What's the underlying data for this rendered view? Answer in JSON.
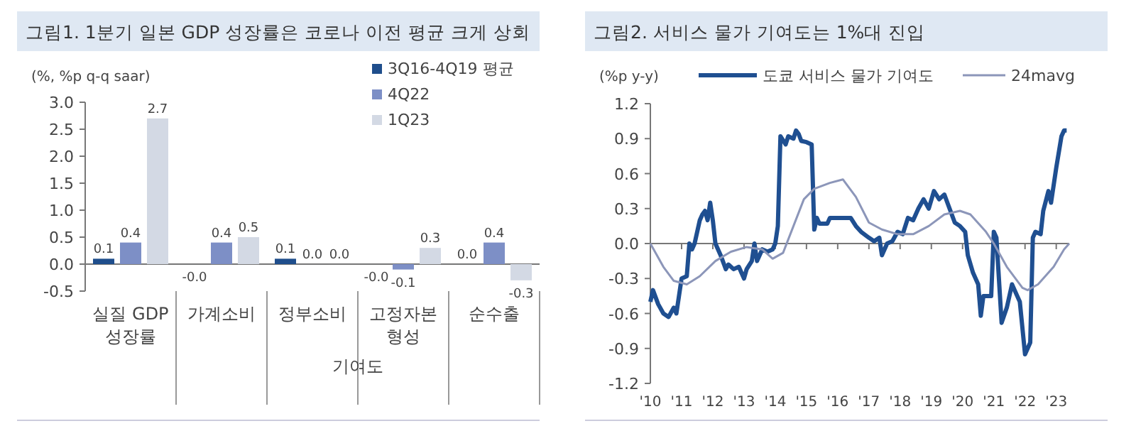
{
  "chart_data": [
    {
      "type": "bar",
      "title": "그림1. 1분기 일본 GDP 성장률은 코로나 이전 평균 크게 상회",
      "ylabel": "(%, %p q-q saar)",
      "categories": [
        "실질 GDP 성장률",
        "가계소비",
        "정부소비",
        "고정자본 형성",
        "순수출"
      ],
      "series": [
        {
          "name": "3Q16-4Q19 평균",
          "color": "#1f4e8c",
          "values": [
            0.1,
            0,
            0.1,
            0,
            0
          ],
          "value_labels": [
            "0.1",
            "-0.0",
            "0.1",
            "-0.0",
            "0.0"
          ]
        },
        {
          "name": "4Q22",
          "color": "#7d8fc6",
          "values": [
            0.4,
            0.4,
            0,
            -0.1,
            0.4
          ],
          "value_labels": [
            "0.4",
            "0.4",
            "0.0",
            "-0.1",
            "0.4"
          ]
        },
        {
          "name": "1Q23",
          "color": "#d3d9e4",
          "values": [
            2.7,
            0.5,
            0,
            0.3,
            -0.3
          ],
          "value_labels": [
            "2.7",
            "0.5",
            "0.0",
            "0.3",
            "-0.3"
          ]
        }
      ],
      "ylim": [
        -0.5,
        3.0
      ],
      "yticks": [
        {
          "value": -0.5,
          "label": "-0.5"
        },
        {
          "value": 0,
          "label": "0.0"
        },
        {
          "value": 0.5,
          "label": "0.5"
        },
        {
          "value": 1,
          "label": "1.0"
        },
        {
          "value": 1.5,
          "label": "1.5"
        },
        {
          "value": 2,
          "label": "2.0"
        },
        {
          "value": 2.5,
          "label": "2.5"
        },
        {
          "value": 3,
          "label": "3.0"
        }
      ],
      "annotations": [
        "기여도"
      ],
      "legend": "top right",
      "grid": false
    },
    {
      "type": "line",
      "title": "그림2. 서비스 물가 기여도는 1%대 진입",
      "ylabel": "(%p y-y)",
      "series": [
        {
          "name": "도쿄 서비스 물가 기여도",
          "color": "#1f4f91",
          "x": [
            "2010-01",
            "2010-02",
            "2010-04",
            "2010-06",
            "2010-08",
            "2010-10",
            "2010-11",
            "2010-12",
            "2011-01",
            "2011-03",
            "2011-04",
            "2011-05",
            "2011-06",
            "2011-08",
            "2011-09",
            "2011-10",
            "2011-11",
            "2011-12",
            "2012-01",
            "2012-02",
            "2012-03",
            "2012-04",
            "2012-06",
            "2012-07",
            "2012-09",
            "2012-11",
            "2013-01",
            "2013-02",
            "2013-04",
            "2013-05",
            "2013-06",
            "2013-08",
            "2013-10",
            "2013-12",
            "2014-01",
            "2014-02",
            "2014-03",
            "2014-05",
            "2014-06",
            "2014-08",
            "2014-09",
            "2014-10",
            "2014-11",
            "2015-01",
            "2015-03",
            "2015-04",
            "2015-05",
            "2015-06",
            "2015-09",
            "2015-10",
            "2016-06",
            "2016-08",
            "2016-10",
            "2017-01",
            "2017-03",
            "2017-05",
            "2017-06",
            "2017-08",
            "2017-10",
            "2017-12",
            "2018-02",
            "2018-04",
            "2018-06",
            "2018-08",
            "2018-10",
            "2018-12",
            "2019-02",
            "2019-04",
            "2019-06",
            "2019-08",
            "2019-10",
            "2019-12",
            "2020-02",
            "2020-03",
            "2020-05",
            "2020-07",
            "2020-08",
            "2020-09",
            "2020-12",
            "2021-01",
            "2021-02",
            "2021-04",
            "2021-06",
            "2021-08",
            "2021-10",
            "2021-11",
            "2022-01",
            "2022-03",
            "2022-04",
            "2022-05",
            "2022-07",
            "2022-08",
            "2022-10",
            "2022-11",
            "2023-01",
            "2023-03",
            "2023-04",
            "2023-05"
          ],
          "values": [
            -0.5,
            -0.4,
            -0.52,
            -0.6,
            -0.63,
            -0.55,
            -0.6,
            -0.45,
            -0.3,
            -0.28,
            0.0,
            -0.05,
            0.0,
            0.2,
            0.25,
            0.28,
            0.2,
            0.35,
            0.2,
            0.0,
            -0.05,
            -0.1,
            -0.22,
            -0.18,
            -0.22,
            -0.2,
            -0.3,
            -0.22,
            -0.15,
            0.0,
            -0.15,
            -0.05,
            -0.07,
            -0.05,
            0.0,
            0.15,
            0.92,
            0.85,
            0.92,
            0.9,
            0.97,
            0.94,
            0.88,
            0.87,
            0.85,
            0.12,
            0.22,
            0.17,
            0.17,
            0.22,
            0.22,
            0.15,
            0.1,
            0.05,
            0.02,
            0.05,
            -0.1,
            0.0,
            0.02,
            0.1,
            0.08,
            0.22,
            0.2,
            0.3,
            0.38,
            0.3,
            0.45,
            0.38,
            0.42,
            0.3,
            0.18,
            0.15,
            0.1,
            -0.1,
            -0.25,
            -0.35,
            -0.62,
            -0.45,
            -0.45,
            0.1,
            0.05,
            -0.68,
            -0.55,
            -0.35,
            -0.45,
            -0.5,
            -0.95,
            -0.85,
            0.05,
            0.1,
            0.08,
            0.28,
            0.45,
            0.35,
            0.65,
            0.92,
            0.97,
            0.97
          ]
        },
        {
          "name": "24mavg",
          "color": "#8c96b9",
          "x": [
            "2010-01",
            "2010-06",
            "2010-10",
            "2011-03",
            "2011-08",
            "2012-02",
            "2012-08",
            "2013-02",
            "2013-08",
            "2013-12",
            "2014-04",
            "2014-08",
            "2014-12",
            "2015-04",
            "2015-10",
            "2016-03",
            "2016-08",
            "2017-01",
            "2017-06",
            "2017-12",
            "2018-06",
            "2018-12",
            "2019-06",
            "2019-12",
            "2020-04",
            "2020-10",
            "2021-01",
            "2021-06",
            "2021-12",
            "2022-02",
            "2022-06",
            "2022-12",
            "2023-04",
            "2023-06"
          ],
          "values": [
            0.0,
            -0.2,
            -0.32,
            -0.35,
            -0.28,
            -0.15,
            -0.07,
            -0.03,
            -0.05,
            -0.13,
            -0.08,
            0.15,
            0.38,
            0.47,
            0.52,
            0.55,
            0.4,
            0.18,
            0.12,
            0.08,
            0.08,
            0.15,
            0.25,
            0.28,
            0.25,
            0.1,
            0.0,
            -0.2,
            -0.38,
            -0.4,
            -0.35,
            -0.2,
            -0.05,
            0.0
          ]
        }
      ],
      "xlim": [
        "2010-01",
        "2023-06"
      ],
      "xticks": [
        {
          "value": "2010-01",
          "label": "'10"
        },
        {
          "value": "2011-01",
          "label": "'11"
        },
        {
          "value": "2012-01",
          "label": "'12"
        },
        {
          "value": "2013-01",
          "label": "'13"
        },
        {
          "value": "2014-01",
          "label": "'14"
        },
        {
          "value": "2015-01",
          "label": "'15"
        },
        {
          "value": "2016-01",
          "label": "'16"
        },
        {
          "value": "2017-01",
          "label": "'17"
        },
        {
          "value": "2018-01",
          "label": "'18"
        },
        {
          "value": "2019-01",
          "label": "'19"
        },
        {
          "value": "2020-01",
          "label": "'20"
        },
        {
          "value": "2021-01",
          "label": "'21"
        },
        {
          "value": "2022-01",
          "label": "'22"
        },
        {
          "value": "2023-01",
          "label": "'23"
        }
      ],
      "ylim": [
        -1.2,
        1.2
      ],
      "yticks": [
        -1.2,
        -0.9,
        -0.6,
        -0.3,
        {
          "value": 0,
          "label": "0.0"
        },
        0.3,
        0.6,
        0.9,
        1.2
      ],
      "ref_lines": [
        {
          "axis": "y",
          "value": 0
        }
      ],
      "legend": "top",
      "grid": false,
      "marker": "none",
      "line_style": "solid"
    }
  ]
}
